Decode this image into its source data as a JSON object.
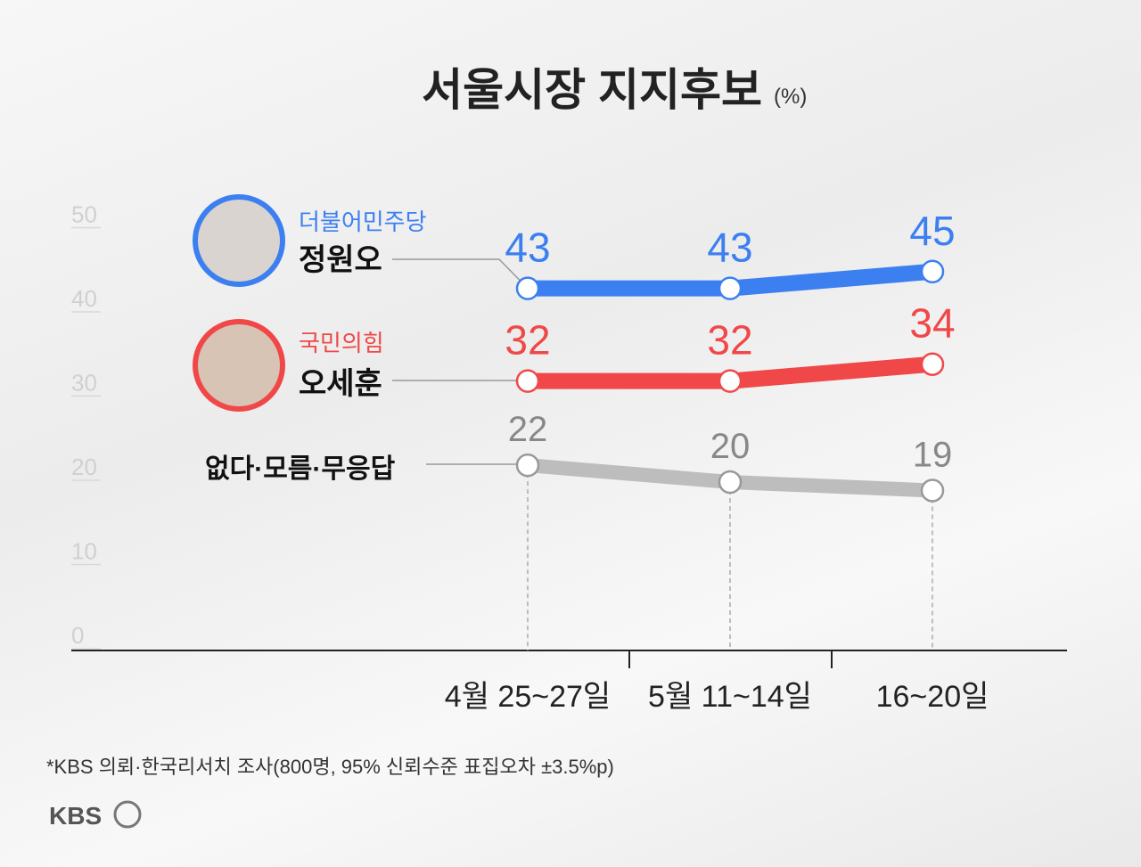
{
  "chart_data": {
    "type": "line",
    "title": "서울시장 지지후보",
    "unit": "(%)",
    "categories": [
      "4월 25~27일",
      "5월 11~14일",
      "16~20일"
    ],
    "series": [
      {
        "name": "정원오",
        "party": "더불어민주당",
        "color": "#3b7ff0",
        "values": [
          43,
          43,
          45
        ]
      },
      {
        "name": "오세훈",
        "party": "국민의힘",
        "color": "#f04848",
        "values": [
          32,
          32,
          34
        ]
      },
      {
        "name": "없다·모름·무응답",
        "color": "#bdbdbd",
        "values": [
          22,
          20,
          19
        ]
      }
    ],
    "ylim": [
      0,
      50
    ],
    "yticks": [
      0,
      10,
      20,
      30,
      40,
      50
    ],
    "footnote": "*KBS 의뢰·한국리서치 조사(800명, 95% 신뢰수준 표집오차 ±3.5%p)",
    "logo": "KBS"
  }
}
